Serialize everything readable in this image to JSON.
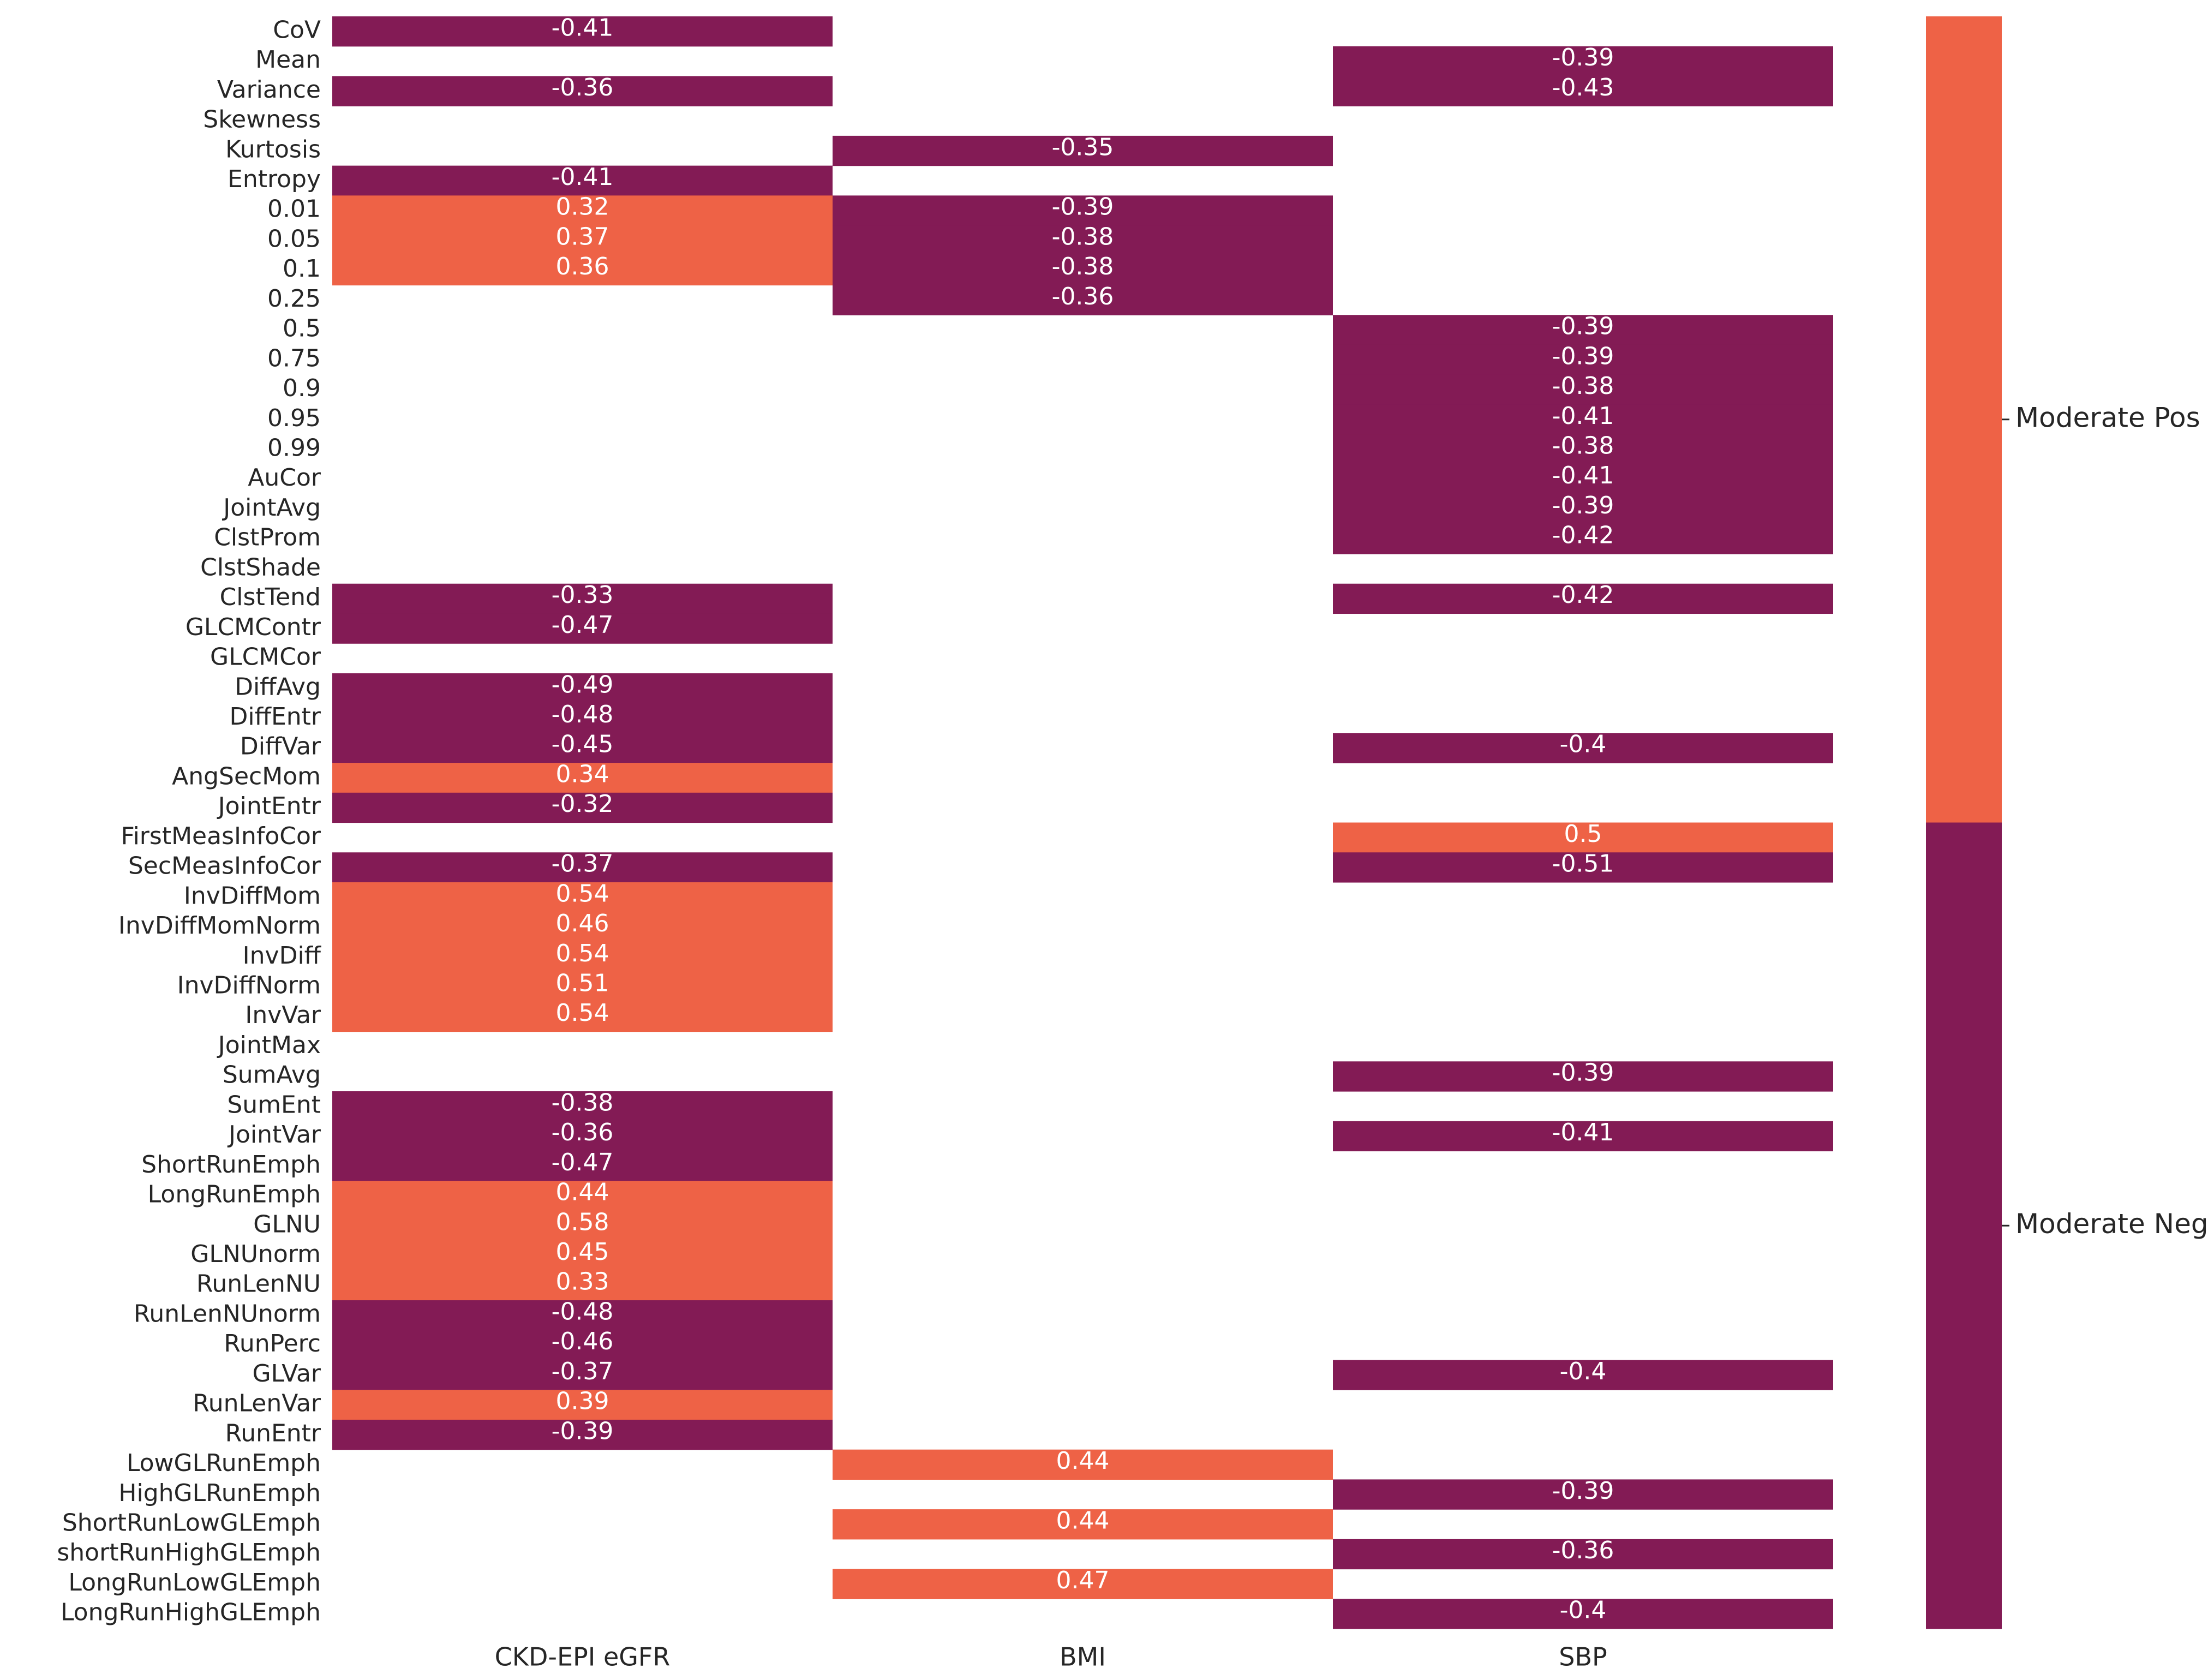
{
  "chart_data": {
    "type": "heatmap",
    "colors": {
      "positive": "#EE6246",
      "negative": "#831B55"
    },
    "columns": [
      "CKD-EPI eGFR",
      "BMI",
      "SBP"
    ],
    "rows": [
      "CoV",
      "Mean",
      "Variance",
      "Skewness",
      "Kurtosis",
      "Entropy",
      "0.01",
      "0.05",
      "0.1",
      "0.25",
      "0.5",
      "0.75",
      "0.9",
      "0.95",
      "0.99",
      "AuCor",
      "JointAvg",
      "ClstProm",
      "ClstShade",
      "ClstTend",
      "GLCMContr",
      "GLCMCor",
      "DiffAvg",
      "DiffEntr",
      "DiffVar",
      "AngSecMom",
      "JointEntr",
      "FirstMeasInfoCor",
      "SecMeasInfoCor",
      "InvDiffMom",
      "InvDiffMomNorm",
      "InvDiff",
      "InvDiffNorm",
      "InvVar",
      "JointMax",
      "SumAvg",
      "SumEnt",
      "JointVar",
      "ShortRunEmph",
      "LongRunEmph",
      "GLNU",
      "GLNUnorm",
      "RunLenNU",
      "RunLenNUnorm",
      "RunPerc",
      "GLVar",
      "RunLenVar",
      "RunEntr",
      "LowGLRunEmph",
      "HighGLRunEmph",
      "ShortRunLowGLEmph",
      "shortRunHighGLEmph",
      "LongRunLowGLEmph",
      "LongRunHighGLEmph"
    ],
    "values": [
      [
        -0.41,
        null,
        null
      ],
      [
        null,
        null,
        -0.39
      ],
      [
        -0.36,
        null,
        -0.43
      ],
      [
        null,
        null,
        null
      ],
      [
        null,
        -0.35,
        null
      ],
      [
        -0.41,
        null,
        null
      ],
      [
        0.32,
        -0.39,
        null
      ],
      [
        0.37,
        -0.38,
        null
      ],
      [
        0.36,
        -0.38,
        null
      ],
      [
        null,
        -0.36,
        null
      ],
      [
        null,
        null,
        -0.39
      ],
      [
        null,
        null,
        -0.39
      ],
      [
        null,
        null,
        -0.38
      ],
      [
        null,
        null,
        -0.41
      ],
      [
        null,
        null,
        -0.38
      ],
      [
        null,
        null,
        -0.41
      ],
      [
        null,
        null,
        -0.39
      ],
      [
        null,
        null,
        -0.42
      ],
      [
        null,
        null,
        null
      ],
      [
        -0.33,
        null,
        -0.42
      ],
      [
        -0.47,
        null,
        null
      ],
      [
        null,
        null,
        null
      ],
      [
        -0.49,
        null,
        null
      ],
      [
        -0.48,
        null,
        null
      ],
      [
        -0.45,
        null,
        -0.4
      ],
      [
        0.34,
        null,
        null
      ],
      [
        -0.32,
        null,
        null
      ],
      [
        null,
        null,
        0.5
      ],
      [
        -0.37,
        null,
        -0.51
      ],
      [
        0.54,
        null,
        null
      ],
      [
        0.46,
        null,
        null
      ],
      [
        0.54,
        null,
        null
      ],
      [
        0.51,
        null,
        null
      ],
      [
        0.54,
        null,
        null
      ],
      [
        null,
        null,
        null
      ],
      [
        null,
        null,
        -0.39
      ],
      [
        -0.38,
        null,
        null
      ],
      [
        -0.36,
        null,
        -0.41
      ],
      [
        -0.47,
        null,
        null
      ],
      [
        0.44,
        null,
        null
      ],
      [
        0.58,
        null,
        null
      ],
      [
        0.45,
        null,
        null
      ],
      [
        0.33,
        null,
        null
      ],
      [
        -0.48,
        null,
        null
      ],
      [
        -0.46,
        null,
        null
      ],
      [
        -0.37,
        null,
        -0.4
      ],
      [
        0.39,
        null,
        null
      ],
      [
        -0.39,
        null,
        null
      ],
      [
        null,
        0.44,
        null
      ],
      [
        null,
        null,
        -0.39
      ],
      [
        null,
        0.44,
        null
      ],
      [
        null,
        null,
        -0.36
      ],
      [
        null,
        0.47,
        null
      ],
      [
        null,
        null,
        -0.4
      ]
    ],
    "colorbar": {
      "labels": [
        "Moderate Pos",
        "Moderate Neg"
      ]
    },
    "xlabel": "",
    "ylabel": ""
  }
}
